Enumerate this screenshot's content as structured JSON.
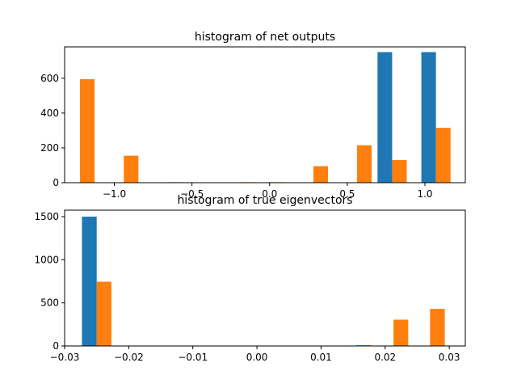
{
  "chart_data": [
    {
      "type": "bar",
      "title": "histogram of net outputs",
      "xlabel": "",
      "ylabel": "",
      "xlim": [
        -1.32,
        1.26
      ],
      "ylim": [
        0,
        780
      ],
      "xticks": [
        -1.0,
        -0.5,
        0.0,
        0.5,
        1.0
      ],
      "xtick_labels": [
        "−1.0",
        "−0.5",
        "0.0",
        "0.5",
        "1.0"
      ],
      "yticks": [
        0,
        200,
        400,
        600
      ],
      "ytick_labels": [
        "0",
        "200",
        "400",
        "600"
      ],
      "grid": false,
      "series": [
        {
          "color": "#1f77b4",
          "bars": [
            {
              "x0": 0.695,
              "x1": 0.789,
              "value": 750
            },
            {
              "x0": 0.977,
              "x1": 1.071,
              "value": 750
            }
          ]
        },
        {
          "color": "#ff7f0e",
          "bars": [
            {
              "x0": -1.221,
              "x1": -1.127,
              "value": 595
            },
            {
              "x0": -0.939,
              "x1": -0.845,
              "value": 155
            },
            {
              "x0": -0.657,
              "x1": -0.563,
              "value": 3
            },
            {
              "x0": -0.188,
              "x1": -0.094,
              "value": 3
            },
            {
              "x0": 0.0,
              "x1": 0.094,
              "value": 3
            },
            {
              "x0": 0.282,
              "x1": 0.376,
              "value": 95
            },
            {
              "x0": 0.563,
              "x1": 0.657,
              "value": 215
            },
            {
              "x0": 0.789,
              "x1": 0.883,
              "value": 130
            },
            {
              "x0": 1.071,
              "x1": 1.165,
              "value": 315
            }
          ]
        }
      ]
    },
    {
      "type": "bar",
      "title": "histogram of true eigenvectors",
      "xlabel": "",
      "ylabel": "",
      "xlim": [
        -0.03,
        0.0325
      ],
      "ylim": [
        0,
        1575
      ],
      "xticks": [
        -0.03,
        -0.02,
        -0.01,
        0.0,
        0.01,
        0.02,
        0.03
      ],
      "xtick_labels": [
        "−0.03",
        "−0.02",
        "−0.01",
        "0.00",
        "0.01",
        "0.02",
        "0.03"
      ],
      "yticks": [
        0,
        500,
        1000,
        1500
      ],
      "ytick_labels": [
        "0",
        "500",
        "1000",
        "1500"
      ],
      "grid": false,
      "series": [
        {
          "color": "#1f77b4",
          "bars": [
            {
              "x0": -0.0273,
              "x1": -0.025,
              "value": 1500
            }
          ]
        },
        {
          "color": "#ff7f0e",
          "bars": [
            {
              "x0": -0.025,
              "x1": -0.0227,
              "value": 745
            },
            {
              "x0": 0.0155,
              "x1": 0.0178,
              "value": 10
            },
            {
              "x0": 0.0213,
              "x1": 0.0236,
              "value": 305
            },
            {
              "x0": 0.027,
              "x1": 0.0293,
              "value": 430
            }
          ]
        }
      ]
    }
  ]
}
